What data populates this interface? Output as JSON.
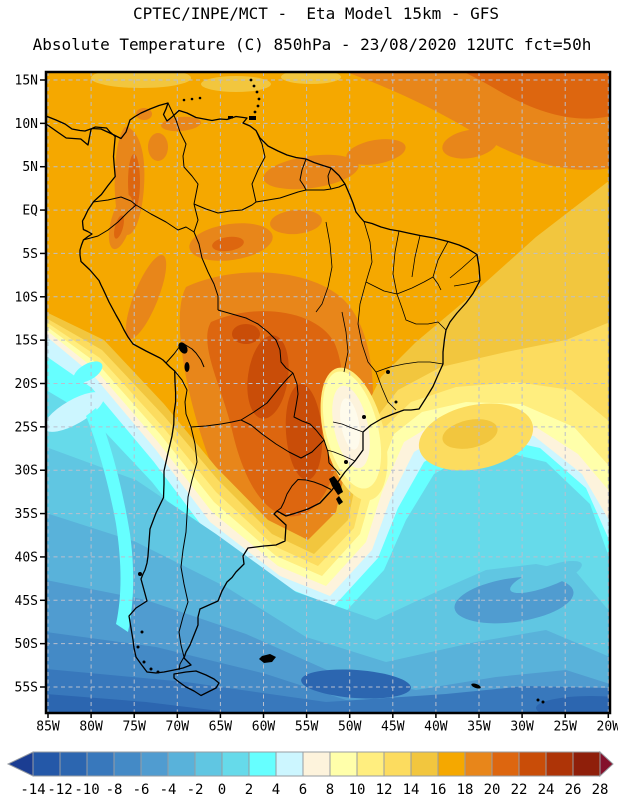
{
  "title": {
    "line1": "CPTEC/INPE/MCT -  Eta Model 15km - GFS",
    "line2": "Absolute Temperature (C) 850hPa - 23/08/2020 12UTC fct=50h"
  },
  "axes": {
    "lat_labels": [
      "15N",
      "10N",
      "5N",
      "EQ",
      "5S",
      "10S",
      "15S",
      "20S",
      "25S",
      "30S",
      "35S",
      "40S",
      "45S",
      "50S",
      "55S"
    ],
    "lon_labels": [
      "85W",
      "80W",
      "75W",
      "70W",
      "65W",
      "60W",
      "55W",
      "50W",
      "45W",
      "40W",
      "35W",
      "30W",
      "25W",
      "20W"
    ]
  },
  "colorbar": {
    "labels": [
      "-14",
      "-12",
      "-10",
      "-8",
      "-6",
      "-4",
      "-2",
      "0",
      "2",
      "4",
      "6",
      "8",
      "10",
      "12",
      "14",
      "16",
      "18",
      "20",
      "22",
      "24",
      "26",
      "28"
    ],
    "cell_colors": [
      "#2458A8",
      "#2C66B0",
      "#3878BC",
      "#448AC6",
      "#509CD0",
      "#59B2DA",
      "#60C6E2",
      "#66DAEA",
      "#66FFFF",
      "#CCF6FF",
      "#FDF3DC",
      "#FFFFAA",
      "#FFEE7F",
      "#FCDC5F",
      "#F2C63E",
      "#F5A800",
      "#E8861A",
      "#DD660F",
      "#C94D08",
      "#AE3407",
      "#8F1F0A"
    ],
    "left_arrow_color": "#1B3D92",
    "right_arrow_color": "#84102B",
    "cell_border_color": "#979ca2"
  },
  "field_palette": {
    "f26": "#8F1F0A",
    "f24": "#AE3407",
    "f22": "#C94D08",
    "f20": "#DD660F",
    "f18": "#E8861A",
    "f16": "#F5A800",
    "f14": "#F2C63E",
    "f12": "#FCDC5F",
    "f10": "#FFEE7F",
    "f8": "#FFFFAA",
    "f6": "#FDF3DC",
    "f4": "#CCF6FF",
    "f2": "#66FFFF",
    "f0": "#66DAEA",
    "fm2": "#60C6E2",
    "fm4": "#59B2DA",
    "fm6": "#509CD0",
    "fm8": "#448AC6",
    "fm10": "#3878BC",
    "fm12": "#2C66B0",
    "fm14": "#2458A8",
    "fcore": "#FEFBEC"
  },
  "chart_data": {
    "type": "filled_contour_map",
    "title": "CPTEC/INPE/MCT - Eta Model 15km - GFS",
    "variable": "Absolute Temperature (C) 850hPa",
    "valid": "23/08/2020 12UTC fct=50h",
    "units": "C",
    "levels": [
      -14,
      -12,
      -10,
      -8,
      -6,
      -4,
      -2,
      0,
      2,
      4,
      6,
      8,
      10,
      12,
      14,
      16,
      18,
      20,
      22,
      24,
      26,
      28
    ],
    "lon_range_ticks": [
      "85W",
      "20W"
    ],
    "lat_range_ticks": [
      "15N",
      "55S"
    ],
    "grid_interval_deg": 5,
    "legend_position": "bottom",
    "features": [
      "16-18C orange field over tropical South America and adjacent oceans",
      "hot core 20-24C over Bolivia/Paraguay/central Brazil",
      "20-22C patch in far northeast Atlantic corner",
      "cool tongue 6-12C along southeast Brazil coast with near-white 6-8C core near Sao Paulo",
      "cold Pacific tongue 0-6C along Peru/Chile coast",
      "temperatures below 0C south of ~40S, deep blue -10 to -12C along southern edge"
    ]
  }
}
